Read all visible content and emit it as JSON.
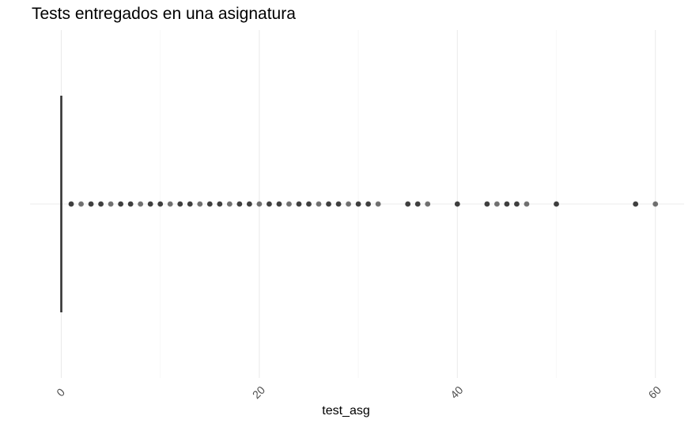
{
  "chart_data": {
    "type": "boxplot",
    "title": "Tests entregados en una asignatura",
    "xlabel": "test_asg",
    "ylabel": "",
    "xlim": [
      -1.5,
      63
    ],
    "x_ticks": [
      0,
      20,
      40,
      60
    ],
    "x_tick_labels": [
      "0",
      "20",
      "40",
      "60"
    ],
    "grid": true,
    "orientation": "horizontal",
    "box": {
      "min": 0,
      "q1": 0,
      "median": 0,
      "q3": 0,
      "max": 0
    },
    "outliers": [
      1,
      2,
      3,
      4,
      5,
      6,
      7,
      8,
      9,
      10,
      11,
      12,
      13,
      14,
      15,
      16,
      17,
      18,
      19,
      20,
      21,
      22,
      23,
      24,
      25,
      26,
      27,
      28,
      29,
      30,
      31,
      32,
      35,
      36,
      37,
      40,
      43,
      44,
      45,
      46,
      47,
      50,
      58,
      60
    ],
    "colors": {
      "box": "#333333",
      "point": "#000000",
      "grid": "#ebebeb",
      "text": "#4d4d4d"
    }
  }
}
